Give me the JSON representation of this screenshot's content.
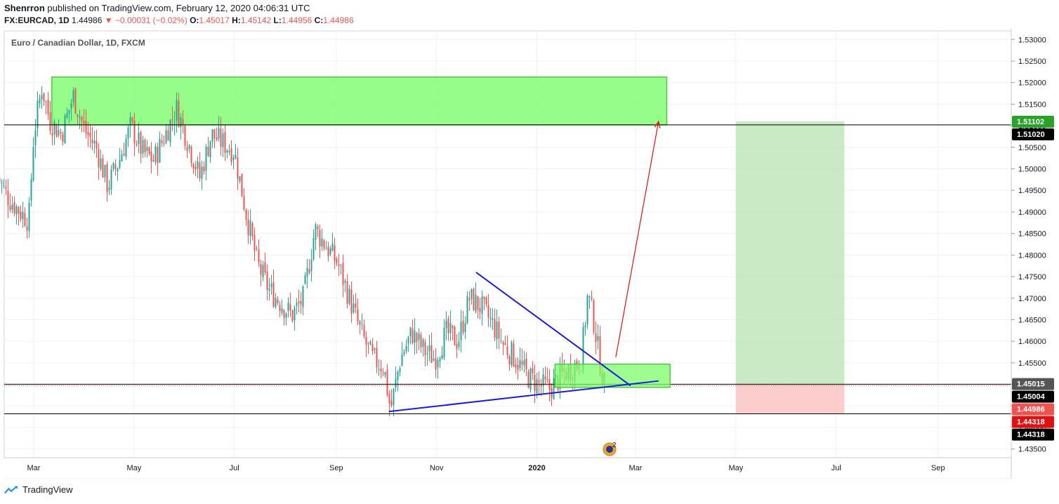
{
  "header": {
    "publisher": "Shenrron",
    "published_text": "published on TradingView.com, February 12, 2020 04:06:31 UTC",
    "symbol": "FX:EURCAD, 1D",
    "last": "1.44986",
    "change": "▼ −0.00031 (−0.02%)",
    "o_label": "O:",
    "o_value": "1.45017",
    "h_label": "H:",
    "h_value": "1.45142",
    "l_label": "L:",
    "l_value": "1.44956",
    "c_label": "C:",
    "c_value": "1.44986"
  },
  "footer": {
    "brand": "TradingView"
  },
  "colors": {
    "up": "#26a69a",
    "down": "#ef5350",
    "zone_green": "#7cfc6a",
    "target_green": "#b7e4b0",
    "stop_red": "#fbc1c1",
    "trend_blue": "#1c1cdc",
    "arrow_red": "#e01010"
  },
  "chart_data": {
    "type": "candlestick",
    "title": "Euro / Canadian Dollar, 1D, FXCM",
    "x_ticks": [
      "Mar",
      "May",
      "Jul",
      "Sep",
      "Nov",
      "2020",
      "Mar",
      "May",
      "Jul",
      "Sep"
    ],
    "y_ticks": [
      "1.53000",
      "1.52500",
      "1.52000",
      "1.51500",
      "1.51000",
      "1.50500",
      "1.50000",
      "1.49500",
      "1.49000",
      "1.48500",
      "1.48000",
      "1.47500",
      "1.47000",
      "1.46500",
      "1.46000",
      "1.45500",
      "1.45000",
      "1.44500",
      "1.44000",
      "1.43500"
    ],
    "ylim": [
      1.433,
      1.532
    ],
    "price_labels": [
      {
        "text": "1.51102",
        "value": 1.51102,
        "bg": "#2aa22a",
        "fg": "#ffffff"
      },
      {
        "text": "1.51020",
        "value": 1.5102,
        "bg": "#000000",
        "fg": "#ffffff"
      },
      {
        "text": "1.45015",
        "value": 1.45015,
        "bg": "#555555",
        "fg": "#ffffff"
      },
      {
        "text": "1.45004",
        "value": 1.45004,
        "bg": "#000000",
        "fg": "#ffffff"
      },
      {
        "text": "1.44986",
        "value": 1.44986,
        "bg": "#ef5350",
        "fg": "#ffffff"
      },
      {
        "text": "1.44318",
        "value": 1.44318,
        "bg": "#e01010",
        "fg": "#ffffff"
      },
      {
        "text": "1.44318",
        "value": 1.44318,
        "bg": "#000000",
        "fg": "#ffffff"
      }
    ],
    "horizontal_lines": [
      1.5102,
      1.45004,
      1.44318
    ],
    "resistance_zone": {
      "x0": "2019-03-12",
      "x1": "2020-03-20",
      "y0": 1.5102,
      "y1": 1.5213
    },
    "support_zone": {
      "x0": "2020-01-12",
      "x1": "2020-03-22",
      "y0": 1.4493,
      "y1": 1.4547
    },
    "position": {
      "x0": "2020-05-01",
      "x1": "2020-07-06",
      "entry": 1.45004,
      "target": 1.51102,
      "stop": 1.44318
    },
    "trendlines": [
      {
        "x0": "2019-10-03",
        "y0": 1.4437,
        "x1": "2020-03-15",
        "y1": 1.4508
      },
      {
        "x0": "2019-11-25",
        "y0": 1.476,
        "x1": "2020-02-27",
        "y1": 1.4497
      }
    ],
    "arrow": {
      "x0": "2020-02-18",
      "y0": 1.4563,
      "x1": "2020-03-15",
      "y1": 1.511
    },
    "indicator_badge": "2",
    "price_path": [
      [
        "2019-02-07",
        1.498
      ],
      [
        "2019-02-14",
        1.493
      ],
      [
        "2019-02-21",
        1.49
      ],
      [
        "2019-02-26",
        1.488
      ],
      [
        "2019-03-01",
        1.508
      ],
      [
        "2019-03-06",
        1.519
      ],
      [
        "2019-03-11",
        1.511
      ],
      [
        "2019-03-18",
        1.508
      ],
      [
        "2019-03-25",
        1.517
      ],
      [
        "2019-04-01",
        1.509
      ],
      [
        "2019-04-08",
        1.505
      ],
      [
        "2019-04-15",
        1.496
      ],
      [
        "2019-04-22",
        1.502
      ],
      [
        "2019-04-29",
        1.51
      ],
      [
        "2019-05-06",
        1.504
      ],
      [
        "2019-05-13",
        1.502
      ],
      [
        "2019-05-20",
        1.508
      ],
      [
        "2019-05-27",
        1.514
      ],
      [
        "2019-06-03",
        1.506
      ],
      [
        "2019-06-10",
        1.498
      ],
      [
        "2019-06-17",
        1.508
      ],
      [
        "2019-06-24",
        1.506
      ],
      [
        "2019-07-01",
        1.504
      ],
      [
        "2019-07-08",
        1.49
      ],
      [
        "2019-07-15",
        1.478
      ],
      [
        "2019-07-22",
        1.472
      ],
      [
        "2019-07-29",
        1.469
      ],
      [
        "2019-08-05",
        1.466
      ],
      [
        "2019-08-12",
        1.47
      ],
      [
        "2019-08-19",
        1.486
      ],
      [
        "2019-08-26",
        1.482
      ],
      [
        "2019-09-02",
        1.478
      ],
      [
        "2019-09-09",
        1.47
      ],
      [
        "2019-09-16",
        1.462
      ],
      [
        "2019-09-23",
        1.456
      ],
      [
        "2019-09-30",
        1.454
      ],
      [
        "2019-10-04",
        1.444
      ],
      [
        "2019-10-10",
        1.456
      ],
      [
        "2019-10-17",
        1.462
      ],
      [
        "2019-10-24",
        1.458
      ],
      [
        "2019-10-31",
        1.456
      ],
      [
        "2019-11-07",
        1.462
      ],
      [
        "2019-11-14",
        1.46
      ],
      [
        "2019-11-21",
        1.47
      ],
      [
        "2019-11-28",
        1.468
      ],
      [
        "2019-12-05",
        1.464
      ],
      [
        "2019-12-12",
        1.459
      ],
      [
        "2019-12-19",
        1.456
      ],
      [
        "2019-12-26",
        1.452
      ],
      [
        "2020-01-02",
        1.45
      ],
      [
        "2020-01-09",
        1.449
      ],
      [
        "2020-01-16",
        1.452
      ],
      [
        "2020-01-23",
        1.454
      ],
      [
        "2020-01-28",
        1.456
      ],
      [
        "2020-02-01",
        1.471
      ],
      [
        "2020-02-05",
        1.464
      ],
      [
        "2020-02-08",
        1.456
      ],
      [
        "2020-02-11",
        1.45
      ]
    ]
  }
}
